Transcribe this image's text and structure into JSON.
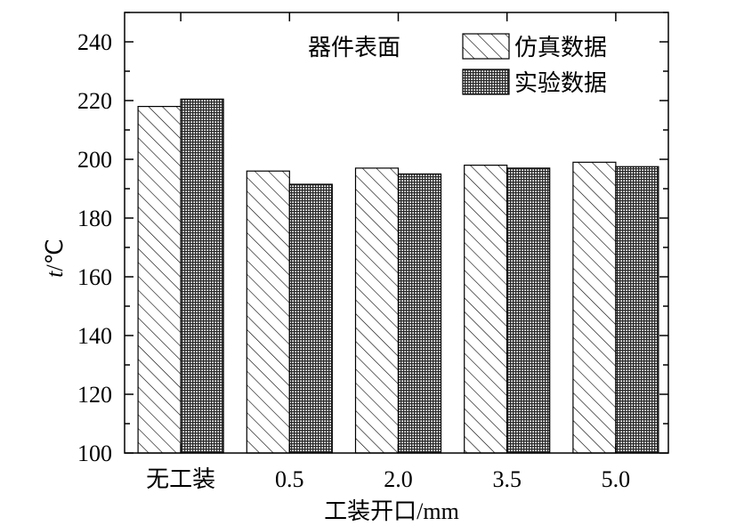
{
  "chart_data": {
    "type": "bar",
    "title": "",
    "annotation": "器件表面",
    "xlabel": "工装开口/mm",
    "ylabel_italic": "t",
    "ylabel_unit": "/℃",
    "ylim": [
      100,
      250
    ],
    "yticks": [
      100,
      120,
      140,
      160,
      180,
      200,
      220,
      240
    ],
    "categories": [
      "无工装",
      "0.5",
      "2.0",
      "3.5",
      "5.0"
    ],
    "series": [
      {
        "name": "仿真数据",
        "pattern": "hatch",
        "values": [
          218,
          196,
          197,
          198,
          199
        ]
      },
      {
        "name": "实验数据",
        "pattern": "grid",
        "values": [
          220.5,
          191.5,
          195,
          197,
          197.5
        ]
      }
    ],
    "legend_position": "top-right",
    "grid": false,
    "colors": {
      "axis": "#000000",
      "bar_stroke": "#000000",
      "grid_fill": "#3a3a3a",
      "background": "#ffffff"
    }
  }
}
